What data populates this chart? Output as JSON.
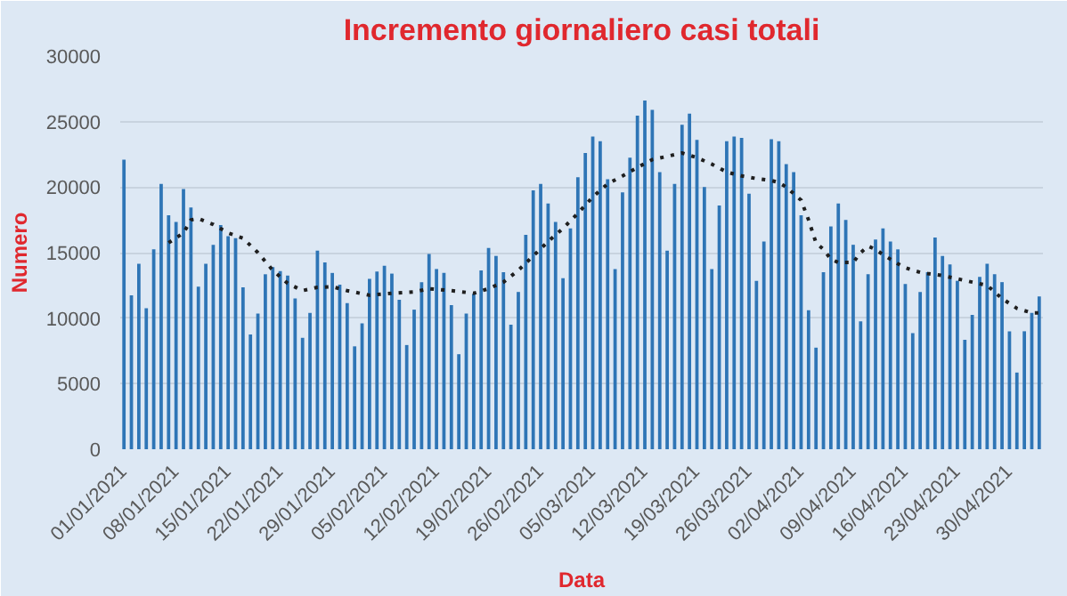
{
  "chart_data": {
    "type": "bar",
    "title": "Incremento giornaliero casi totali",
    "xlabel": "Data",
    "ylabel": "Numero",
    "x": [
      "2021-01-01",
      "2021-01-02",
      "2021-01-03",
      "2021-01-04",
      "2021-01-05",
      "2021-01-06",
      "2021-01-07",
      "2021-01-08",
      "2021-01-09",
      "2021-01-10",
      "2021-01-11",
      "2021-01-12",
      "2021-01-13",
      "2021-01-14",
      "2021-01-15",
      "2021-01-16",
      "2021-01-17",
      "2021-01-18",
      "2021-01-19",
      "2021-01-20",
      "2021-01-21",
      "2021-01-22",
      "2021-01-23",
      "2021-01-24",
      "2021-01-25",
      "2021-01-26",
      "2021-01-27",
      "2021-01-28",
      "2021-01-29",
      "2021-01-30",
      "2021-01-31",
      "2021-02-01",
      "2021-02-02",
      "2021-02-03",
      "2021-02-04",
      "2021-02-05",
      "2021-02-06",
      "2021-02-07",
      "2021-02-08",
      "2021-02-09",
      "2021-02-10",
      "2021-02-11",
      "2021-02-12",
      "2021-02-13",
      "2021-02-14",
      "2021-02-15",
      "2021-02-16",
      "2021-02-17",
      "2021-02-18",
      "2021-02-19",
      "2021-02-20",
      "2021-02-21",
      "2021-02-22",
      "2021-02-23",
      "2021-02-24",
      "2021-02-25",
      "2021-02-26",
      "2021-02-27",
      "2021-02-28",
      "2021-03-01",
      "2021-03-02",
      "2021-03-03",
      "2021-03-04",
      "2021-03-05",
      "2021-03-06",
      "2021-03-07",
      "2021-03-08",
      "2021-03-09",
      "2021-03-10",
      "2021-03-11",
      "2021-03-12",
      "2021-03-13",
      "2021-03-14",
      "2021-03-15",
      "2021-03-16",
      "2021-03-17",
      "2021-03-18",
      "2021-03-19",
      "2021-03-20",
      "2021-03-21",
      "2021-03-22",
      "2021-03-23",
      "2021-03-24",
      "2021-03-25",
      "2021-03-26",
      "2021-03-27",
      "2021-03-28",
      "2021-03-29",
      "2021-03-30",
      "2021-03-31",
      "2021-04-01",
      "2021-04-02",
      "2021-04-03",
      "2021-04-04",
      "2021-04-05",
      "2021-04-06",
      "2021-04-07",
      "2021-04-08",
      "2021-04-09",
      "2021-04-10",
      "2021-04-11",
      "2021-04-12",
      "2021-04-13",
      "2021-04-14",
      "2021-04-15",
      "2021-04-16",
      "2021-04-17",
      "2021-04-18",
      "2021-04-19",
      "2021-04-20",
      "2021-04-21",
      "2021-04-22",
      "2021-04-23",
      "2021-04-24",
      "2021-04-25",
      "2021-04-26",
      "2021-04-27",
      "2021-04-28",
      "2021-04-29",
      "2021-04-30",
      "2021-05-01",
      "2021-05-02",
      "2021-05-03",
      "2021-05-04"
    ],
    "series": [
      {
        "color": "#2e75b6",
        "values": [
          22100,
          11750,
          14150,
          10750,
          15250,
          20250,
          17850,
          17350,
          19850,
          18450,
          12400,
          14150,
          15600,
          17100,
          16250,
          16100,
          12350,
          8750,
          10350,
          13350,
          13900,
          13600,
          13250,
          11500,
          8500,
          10400,
          15150,
          14250,
          13450,
          12550,
          11150,
          7850,
          9600,
          13000,
          13550,
          14000,
          13400,
          11400,
          7950,
          10650,
          12750,
          14900,
          13750,
          13450,
          11000,
          7250,
          10350,
          11850,
          13650,
          15350,
          14750,
          13500,
          9500,
          12000,
          16350,
          19750,
          20250,
          18750,
          17350,
          13050,
          16850,
          20750,
          22600,
          23850,
          23500,
          20600,
          13750,
          19600,
          22250,
          25450,
          26600,
          25900,
          21150,
          15150,
          20250,
          24750,
          25600,
          23600,
          20000,
          13750,
          18600,
          23500,
          23850,
          23750,
          19500,
          12850,
          15850,
          23650,
          23500,
          21750,
          21150,
          17850,
          10600,
          7750,
          13500,
          17000,
          18750,
          17500,
          15600,
          9750,
          13350,
          16000,
          16850,
          15850,
          15250,
          12600,
          8850,
          12000,
          13500,
          16150,
          14750,
          14100,
          12850,
          8350,
          10250,
          13150,
          14150,
          13350,
          12750,
          9000,
          5850,
          9000,
          10400,
          11650
        ]
      },
      {
        "type": "line",
        "color": "#1f1f1f",
        "line_style": "dotted",
        "x": [
          "2021-01-07",
          "2021-01-09",
          "2021-01-10",
          "2021-01-11",
          "2021-01-13",
          "2021-01-15",
          "2021-01-17",
          "2021-01-19",
          "2021-01-21",
          "2021-01-23",
          "2021-01-25",
          "2021-01-27",
          "2021-01-29",
          "2021-01-31",
          "2021-02-03",
          "2021-02-06",
          "2021-02-09",
          "2021-02-11",
          "2021-02-14",
          "2021-02-17",
          "2021-02-19",
          "2021-02-21",
          "2021-02-23",
          "2021-02-25",
          "2021-02-27",
          "2021-03-01",
          "2021-03-03",
          "2021-03-05",
          "2021-03-07",
          "2021-03-09",
          "2021-03-11",
          "2021-03-13",
          "2021-03-15",
          "2021-03-17",
          "2021-03-19",
          "2021-03-21",
          "2021-03-23",
          "2021-03-25",
          "2021-03-27",
          "2021-03-29",
          "2021-03-30",
          "2021-03-31",
          "2021-04-01",
          "2021-04-02",
          "2021-04-03",
          "2021-04-04",
          "2021-04-05",
          "2021-04-06",
          "2021-04-07",
          "2021-04-08",
          "2021-04-09",
          "2021-04-10",
          "2021-04-11",
          "2021-04-12",
          "2021-04-13",
          "2021-04-14",
          "2021-04-15",
          "2021-04-16",
          "2021-04-17",
          "2021-04-18",
          "2021-04-19",
          "2021-04-21",
          "2021-04-23",
          "2021-04-25",
          "2021-04-27",
          "2021-04-29",
          "2021-05-01",
          "2021-05-03",
          "2021-05-04"
        ],
        "values": [
          15750,
          16500,
          17500,
          17600,
          17150,
          16500,
          16100,
          15000,
          13650,
          12650,
          12100,
          12350,
          12400,
          12100,
          11750,
          11900,
          12000,
          12250,
          12100,
          11900,
          12250,
          12750,
          13650,
          14750,
          15850,
          16850,
          18000,
          19250,
          20250,
          20850,
          21500,
          22100,
          22350,
          22600,
          22250,
          21750,
          21150,
          20850,
          20650,
          20500,
          20350,
          20000,
          19500,
          19000,
          17500,
          15750,
          15250,
          14500,
          14250,
          14250,
          14250,
          15000,
          15500,
          15250,
          14850,
          14500,
          14150,
          13850,
          13650,
          13500,
          13400,
          13250,
          13000,
          12750,
          12500,
          11500,
          10750,
          10400,
          10400
        ]
      }
    ],
    "xlim": [
      "2020-12-31T12:00",
      "2021-05-04T12:00"
    ],
    "xticks": [
      {
        "value": "2021-01-01",
        "label": "01/01/2021"
      },
      {
        "value": "2021-01-08",
        "label": "08/01/2021"
      },
      {
        "value": "2021-01-15",
        "label": "15/01/2021"
      },
      {
        "value": "2021-01-22",
        "label": "22/01/2021"
      },
      {
        "value": "2021-01-29",
        "label": "29/01/2021"
      },
      {
        "value": "2021-02-05",
        "label": "05/02/2021"
      },
      {
        "value": "2021-02-12",
        "label": "12/02/2021"
      },
      {
        "value": "2021-02-19",
        "label": "19/02/2021"
      },
      {
        "value": "2021-02-26",
        "label": "26/02/2021"
      },
      {
        "value": "2021-03-05",
        "label": "05/03/2021"
      },
      {
        "value": "2021-03-12",
        "label": "12/03/2021"
      },
      {
        "value": "2021-03-19",
        "label": "19/03/2021"
      },
      {
        "value": "2021-03-26",
        "label": "26/03/2021"
      },
      {
        "value": "2021-04-02",
        "label": "02/04/2021"
      },
      {
        "value": "2021-04-09",
        "label": "09/04/2021"
      },
      {
        "value": "2021-04-16",
        "label": "16/04/2021"
      },
      {
        "value": "2021-04-23",
        "label": "23/04/2021"
      },
      {
        "value": "2021-04-30",
        "label": "30/04/2021"
      }
    ],
    "ylim": [
      0,
      30000
    ],
    "yticks": [
      0,
      5000,
      10000,
      15000,
      20000,
      25000,
      30000
    ],
    "grid": "y"
  }
}
